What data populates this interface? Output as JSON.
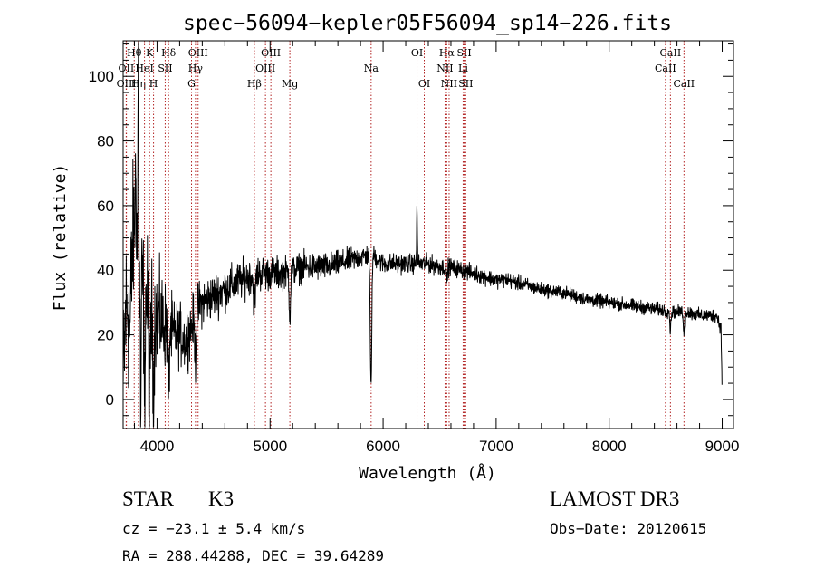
{
  "chart_data": {
    "type": "line",
    "title": "spec−56094−kepler05F56094_sp14−226.fits",
    "xlabel": "Wavelength (Å)",
    "ylabel": "Flux (relative)",
    "xlim": [
      3700,
      9100
    ],
    "ylim": [
      -9,
      111
    ],
    "xticks": [
      4000,
      5000,
      6000,
      7000,
      8000,
      9000
    ],
    "yticks": [
      0,
      20,
      40,
      60,
      80,
      100
    ],
    "tick_labels_x": [
      "4000",
      "5000",
      "6000",
      "7000",
      "8000",
      "9000"
    ],
    "tick_labels_y": [
      "0",
      "20",
      "40",
      "60",
      "80",
      "100"
    ],
    "line_color": "#000000",
    "marker_color": "#b22222",
    "spectrum": {
      "name": "flux",
      "anchors": [
        [
          3700,
          2
        ],
        [
          3720,
          25
        ],
        [
          3740,
          30
        ],
        [
          3760,
          20
        ],
        [
          3780,
          45
        ],
        [
          3800,
          55
        ],
        [
          3815,
          70
        ],
        [
          3830,
          30
        ],
        [
          3860,
          35
        ],
        [
          3900,
          32
        ],
        [
          3950,
          25
        ],
        [
          4000,
          26
        ],
        [
          4050,
          24
        ],
        [
          4100,
          22
        ],
        [
          4150,
          20
        ],
        [
          4200,
          20
        ],
        [
          4250,
          18
        ],
        [
          4300,
          22
        ],
        [
          4350,
          28
        ],
        [
          4400,
          30
        ],
        [
          4500,
          32
        ],
        [
          4600,
          34
        ],
        [
          4700,
          36
        ],
        [
          4800,
          38
        ],
        [
          4900,
          39
        ],
        [
          5000,
          39
        ],
        [
          5100,
          39
        ],
        [
          5200,
          40
        ],
        [
          5300,
          41
        ],
        [
          5400,
          41
        ],
        [
          5500,
          41
        ],
        [
          5600,
          42
        ],
        [
          5700,
          43
        ],
        [
          5800,
          44
        ],
        [
          5900,
          45
        ],
        [
          6000,
          42
        ],
        [
          6100,
          42
        ],
        [
          6200,
          42
        ],
        [
          6300,
          42
        ],
        [
          6400,
          42
        ],
        [
          6500,
          41
        ],
        [
          6600,
          41
        ],
        [
          6700,
          40
        ],
        [
          6800,
          39
        ],
        [
          6900,
          38
        ],
        [
          7000,
          37
        ],
        [
          7100,
          37
        ],
        [
          7200,
          36
        ],
        [
          7300,
          35
        ],
        [
          7400,
          34
        ],
        [
          7500,
          33.5
        ],
        [
          7600,
          33
        ],
        [
          7700,
          32
        ],
        [
          7800,
          31
        ],
        [
          7900,
          30.5
        ],
        [
          8000,
          30
        ],
        [
          8100,
          29.5
        ],
        [
          8200,
          29
        ],
        [
          8300,
          28.5
        ],
        [
          8400,
          28
        ],
        [
          8500,
          27.5
        ],
        [
          8600,
          27
        ],
        [
          8700,
          27
        ],
        [
          8800,
          26
        ],
        [
          8900,
          26
        ],
        [
          8950,
          26
        ],
        [
          8990,
          22
        ],
        [
          9000,
          1
        ]
      ],
      "features": [
        {
          "center": 3835,
          "depth": 82,
          "width": 4
        },
        {
          "center": 3856,
          "depth": -48,
          "width": 3
        },
        {
          "center": 3889,
          "depth": -38,
          "width": 4
        },
        {
          "center": 3934,
          "depth": -32,
          "width": 5
        },
        {
          "center": 3969,
          "depth": -26,
          "width": 5
        },
        {
          "center": 4102,
          "depth": -20,
          "width": 6
        },
        {
          "center": 4340,
          "depth": -14,
          "width": 7
        },
        {
          "center": 4861,
          "depth": -10,
          "width": 8
        },
        {
          "center": 5175,
          "depth": -14,
          "width": 6
        },
        {
          "center": 5890,
          "depth": -24,
          "width": 6
        },
        {
          "center": 5896,
          "depth": -22,
          "width": 6
        },
        {
          "center": 6300,
          "depth": 19,
          "width": 3
        },
        {
          "center": 6563,
          "depth": -4,
          "width": 5
        },
        {
          "center": 8542,
          "depth": -6,
          "width": 5
        },
        {
          "center": 8662,
          "depth": -6,
          "width": 5
        }
      ],
      "noise_profile": [
        [
          3700,
          26
        ],
        [
          3950,
          18
        ],
        [
          4150,
          10
        ],
        [
          4400,
          7
        ],
        [
          5000,
          5
        ],
        [
          6000,
          3
        ],
        [
          7500,
          2
        ],
        [
          9000,
          2
        ]
      ]
    },
    "line_markers": [
      {
        "label": "Hθ",
        "wavelength": 3798,
        "row": 1
      },
      {
        "label": "OII",
        "wavelength": 3727,
        "row": 2
      },
      {
        "label": "OIII",
        "wavelength": 3729,
        "row": 3
      },
      {
        "label": "Hη",
        "wavelength": 3835,
        "row": 3
      },
      {
        "label": "K",
        "wavelength": 3934,
        "row": 1
      },
      {
        "label": "HeI",
        "wavelength": 3889,
        "row": 2
      },
      {
        "label": "H",
        "wavelength": 3969,
        "row": 3
      },
      {
        "label": "Hδ",
        "wavelength": 4102,
        "row": 1
      },
      {
        "label": "SII",
        "wavelength": 4072,
        "row": 2
      },
      {
        "label": "OIII",
        "wavelength": 4363,
        "row": 1
      },
      {
        "label": "Hγ",
        "wavelength": 4340,
        "row": 2
      },
      {
        "label": "G",
        "wavelength": 4305,
        "row": 3
      },
      {
        "label": "Hβ",
        "wavelength": 4861,
        "row": 3
      },
      {
        "label": "OIII",
        "wavelength": 5007,
        "row": 1
      },
      {
        "label": "OIII",
        "wavelength": 4959,
        "row": 2
      },
      {
        "label": "Mg",
        "wavelength": 5175,
        "row": 3
      },
      {
        "label": "Na",
        "wavelength": 5894,
        "row": 2
      },
      {
        "label": "OI",
        "wavelength": 6300,
        "row": 1
      },
      {
        "label": "OI",
        "wavelength": 6364,
        "row": 3
      },
      {
        "label": "Hα",
        "wavelength": 6563,
        "row": 1
      },
      {
        "label": "NII",
        "wavelength": 6548,
        "row": 2
      },
      {
        "label": "NII",
        "wavelength": 6584,
        "row": 3
      },
      {
        "label": "SII",
        "wavelength": 6717,
        "row": 1
      },
      {
        "label": "Li",
        "wavelength": 6708,
        "row": 2
      },
      {
        "label": "SII",
        "wavelength": 6731,
        "row": 3
      },
      {
        "label": "CaII",
        "wavelength": 8542,
        "row": 1
      },
      {
        "label": "CaII",
        "wavelength": 8498,
        "row": 2
      },
      {
        "label": "CaII",
        "wavelength": 8662,
        "row": 3
      }
    ]
  },
  "info": {
    "object_class": "STAR",
    "subclass": "K3",
    "survey": "LAMOST DR3",
    "redshift": "cz = −23.1 ± 5.4 km/s",
    "obs_date": "Obs−Date: 20120615",
    "coordinates": "RA = 288.44288, DEC =  39.64289"
  }
}
